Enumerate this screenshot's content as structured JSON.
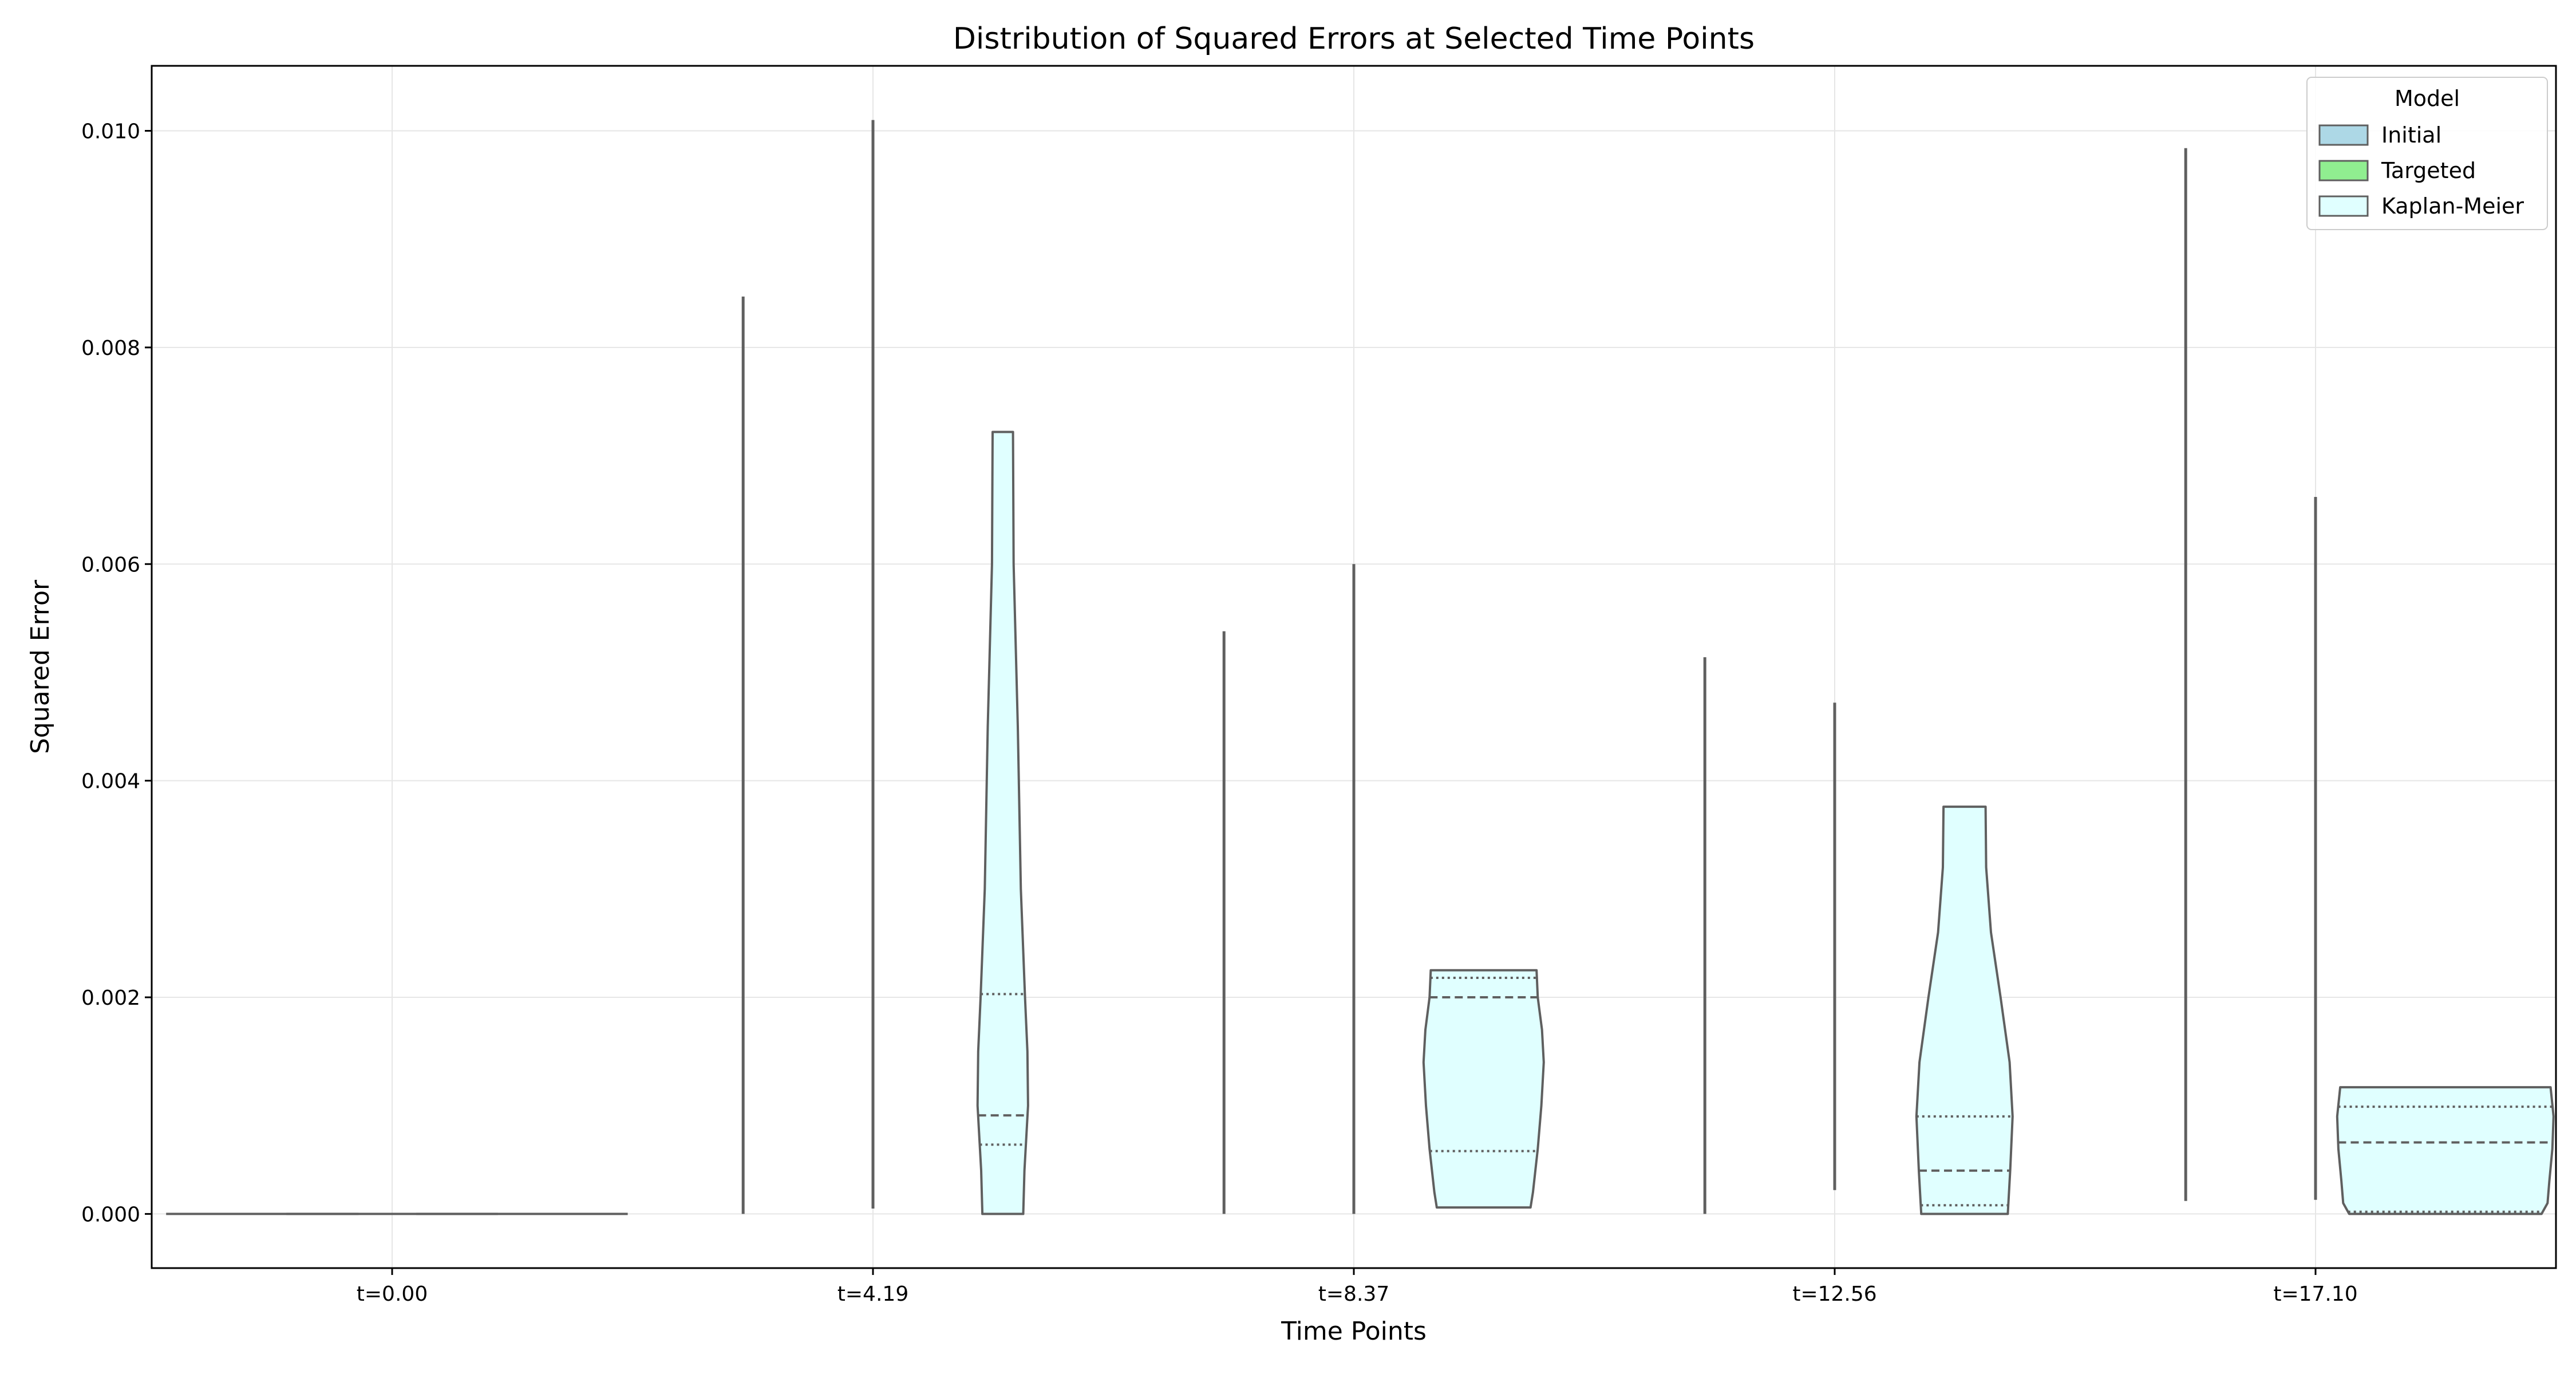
{
  "chart_data": {
    "type": "violin",
    "title": "Distribution of Squared Errors at Selected Time Points",
    "xlabel": "Time Points",
    "ylabel": "Squared Error",
    "categories": [
      "t=0.00",
      "t=4.19",
      "t=8.37",
      "t=12.56",
      "t=17.10"
    ],
    "ylim": [
      -0.0005,
      0.0106
    ],
    "yticks": [
      0.0,
      0.002,
      0.004,
      0.006,
      0.008,
      0.01
    ],
    "ytick_labels": [
      "0.000",
      "0.002",
      "0.004",
      "0.006",
      "0.008",
      "0.010"
    ],
    "grid": true,
    "legend": {
      "title": "Model",
      "placement": "top-right",
      "entries": [
        {
          "name": "Initial",
          "color": "#add8e6"
        },
        {
          "name": "Targeted",
          "color": "#90ee90"
        },
        {
          "name": "Kaplan-Meier",
          "color": "#e0ffff"
        }
      ]
    },
    "series": [
      {
        "name": "Initial",
        "color": "#add8e6",
        "values": [
          {
            "min": 0.0,
            "max": 0.0
          },
          {
            "min": 0.0,
            "max": 0.00847
          },
          {
            "min": 0.0,
            "max": 0.00538
          },
          {
            "min": 0.0,
            "max": 0.00514
          },
          {
            "min": 0.00012,
            "max": 0.00984
          }
        ]
      },
      {
        "name": "Targeted",
        "color": "#90ee90",
        "values": [
          {
            "min": 0.0,
            "max": 0.0
          },
          {
            "min": 5e-05,
            "max": 0.0101
          },
          {
            "min": 0.0,
            "max": 0.006
          },
          {
            "min": 0.00022,
            "max": 0.00472
          },
          {
            "min": 0.00013,
            "max": 0.00662
          }
        ]
      },
      {
        "name": "Kaplan-Meier",
        "color": "#e0ffff",
        "values": [
          {
            "min": 0.0,
            "max": 0.0,
            "profile": [
              [
                0.0,
                0.0
              ]
            ]
          },
          {
            "min": 0.0,
            "max": 0.00722,
            "q1": 0.00064,
            "median": 0.00091,
            "q3": 0.00203,
            "profile": [
              [
                0.0,
                0.34
              ],
              [
                0.0004,
                0.36
              ],
              [
                0.001,
                0.42
              ],
              [
                0.0015,
                0.41
              ],
              [
                0.002,
                0.37
              ],
              [
                0.003,
                0.3
              ],
              [
                0.0045,
                0.25
              ],
              [
                0.006,
                0.18
              ],
              [
                0.00722,
                0.17
              ]
            ]
          },
          {
            "min": 6e-05,
            "max": 0.00225,
            "q1": 0.00058,
            "median": 0.002,
            "q3": 0.00218,
            "profile": [
              [
                6e-05,
                0.78
              ],
              [
                0.0002,
                0.82
              ],
              [
                0.0006,
                0.9
              ],
              [
                0.001,
                0.96
              ],
              [
                0.0014,
                1.0
              ],
              [
                0.0017,
                0.97
              ],
              [
                0.002,
                0.9
              ],
              [
                0.00225,
                0.88
              ]
            ]
          },
          {
            "min": 0.0,
            "max": 0.00376,
            "q1": 8e-05,
            "median": 0.0004,
            "q3": 0.0009,
            "profile": [
              [
                0.0,
                0.72
              ],
              [
                0.0004,
                0.76
              ],
              [
                0.0009,
                0.8
              ],
              [
                0.0014,
                0.75
              ],
              [
                0.002,
                0.6
              ],
              [
                0.0026,
                0.44
              ],
              [
                0.0032,
                0.36
              ],
              [
                0.00376,
                0.35
              ]
            ]
          },
          {
            "min": 0.0,
            "max": 0.00117,
            "q1": 2e-05,
            "median": 0.00066,
            "q3": 0.00099,
            "profile": [
              [
                0.0,
                1.6
              ],
              [
                0.0001,
                1.7
              ],
              [
                0.0003,
                1.73
              ],
              [
                0.0006,
                1.78
              ],
              [
                0.0009,
                1.8
              ],
              [
                0.00117,
                1.75
              ]
            ]
          }
        ]
      }
    ]
  }
}
